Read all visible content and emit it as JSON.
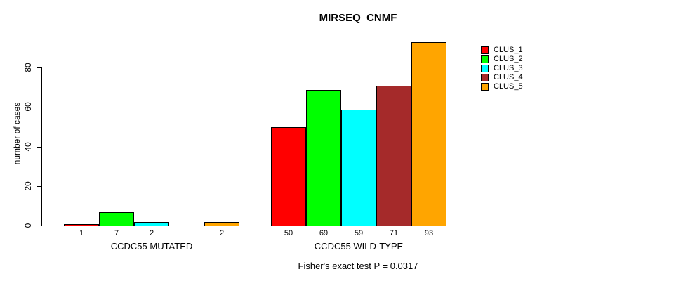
{
  "chart_data": {
    "type": "bar",
    "title": "MIRSEQ_CNMF",
    "ylabel": "number of cases",
    "xlabel": "",
    "yticks": [
      0,
      20,
      40,
      60,
      80
    ],
    "ylim": [
      0,
      93
    ],
    "grid": false,
    "legend_position": "right",
    "categories": [
      "CLUS_1",
      "CLUS_2",
      "CLUS_3",
      "CLUS_4",
      "CLUS_5"
    ],
    "series_colors": [
      "#FF0000",
      "#00FF00",
      "#00FFFF",
      "#A52A2A",
      "#FFA500"
    ],
    "groups": [
      {
        "label": "CCDC55 MUTATED",
        "values": [
          1,
          7,
          2,
          0,
          2
        ]
      },
      {
        "label": "CCDC55 WILD-TYPE",
        "values": [
          50,
          69,
          59,
          71,
          93
        ]
      }
    ],
    "legend": [
      {
        "label": "CLUS_1",
        "color": "#FF0000"
      },
      {
        "label": "CLUS_2",
        "color": "#00FF00"
      },
      {
        "label": "CLUS_3",
        "color": "#00FFFF"
      },
      {
        "label": "CLUS_4",
        "color": "#A52A2A"
      },
      {
        "label": "CLUS_5",
        "color": "#FFA500"
      }
    ],
    "footnote": "Fisher's exact test P = 0.0317"
  }
}
